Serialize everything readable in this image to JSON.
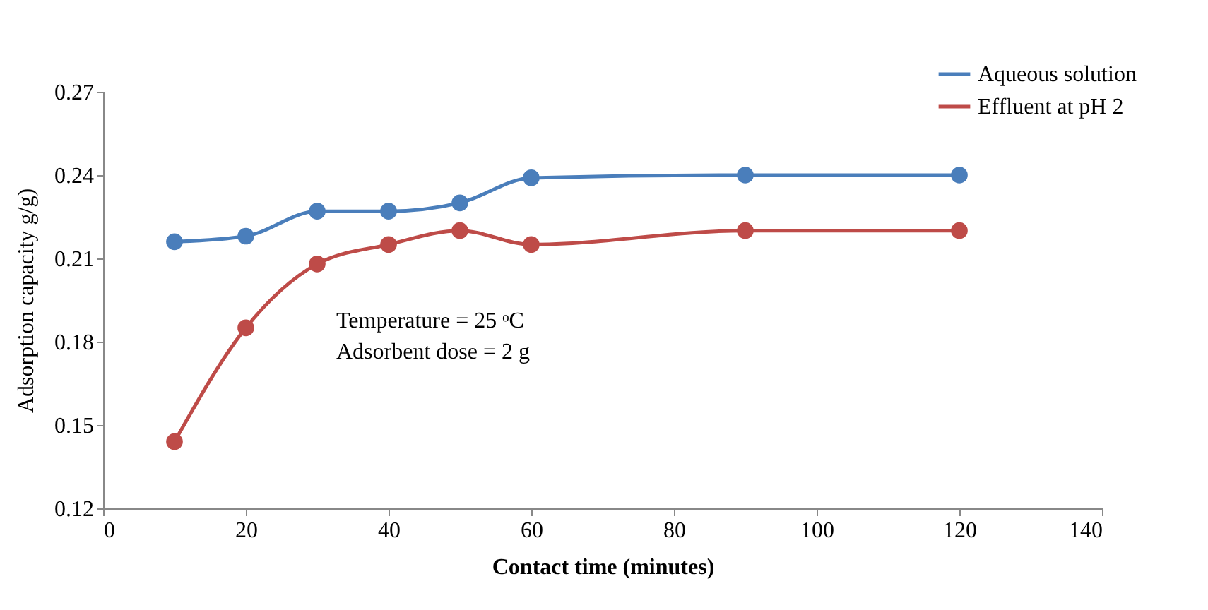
{
  "chart_data": {
    "type": "line",
    "xlabel": "Contact time (minutes)",
    "ylabel": "Adsorption capacity g/g)",
    "x": [
      10,
      20,
      30,
      40,
      50,
      60,
      90,
      120
    ],
    "series": [
      {
        "name": "Aqueous solution",
        "color": "#4a7ebb",
        "values": [
          0.216,
          0.218,
          0.227,
          0.227,
          0.23,
          0.239,
          0.24,
          0.24
        ]
      },
      {
        "name": "Effluent at pH 2",
        "color": "#be4b48",
        "values": [
          0.144,
          0.185,
          0.208,
          0.215,
          0.22,
          0.215,
          0.22,
          0.22
        ]
      }
    ],
    "xlim": [
      0,
      140
    ],
    "xticks": [
      0,
      20,
      40,
      60,
      80,
      100,
      120,
      140
    ],
    "ylim": [
      0.12,
      0.27
    ],
    "yticks": [
      0.12,
      0.15,
      0.18,
      0.21,
      0.24,
      0.27
    ],
    "annotations": [
      "Temperature = 25 ᵒC",
      "Adsorbent dose = 2 g"
    ],
    "grid": false,
    "legend": "top right",
    "marker": "circle",
    "line_style": "solid"
  }
}
